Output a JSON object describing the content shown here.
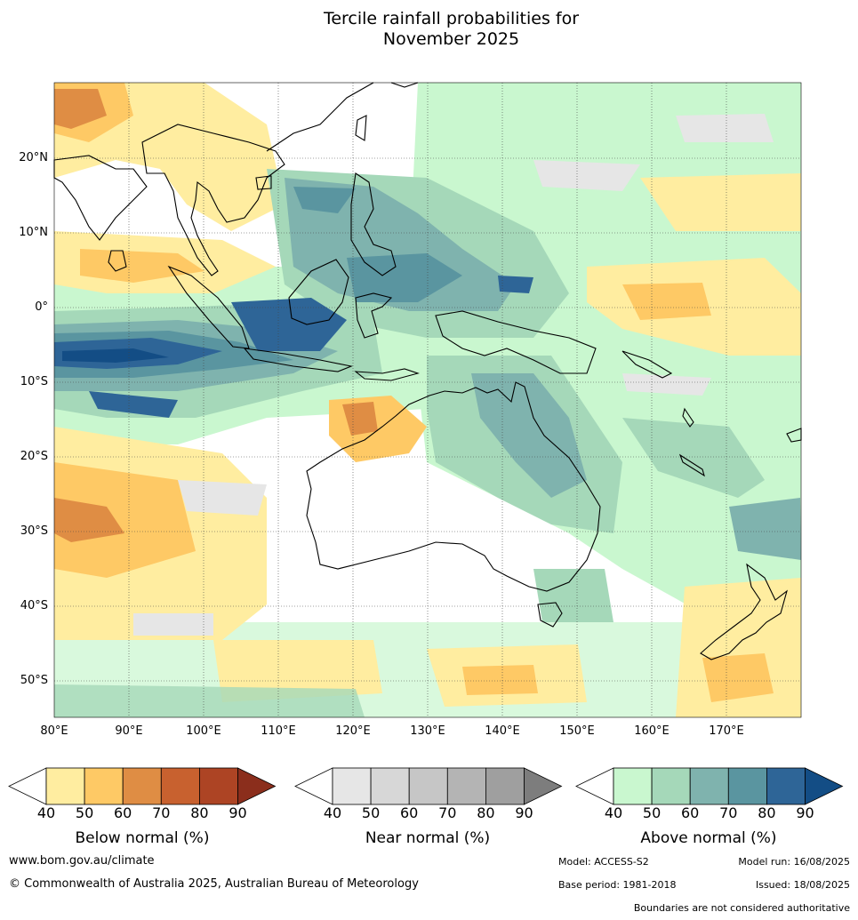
{
  "title": {
    "line1": "Tercile rainfall probabilities for",
    "line2": "November 2025"
  },
  "map": {
    "lat_labels": [
      "20°N",
      "10°N",
      "0°",
      "10°S",
      "20°S",
      "30°S",
      "40°S",
      "50°S"
    ],
    "lon_labels": [
      "80°E",
      "90°E",
      "100°E",
      "110°E",
      "120°E",
      "130°E",
      "140°E",
      "150°E",
      "160°E",
      "170°E"
    ],
    "extent": {
      "lon_min": 80,
      "lon_max": 180,
      "lat_min": -55,
      "lat_max": 30
    }
  },
  "colorbars": [
    {
      "label": "Below normal (%)",
      "ticks": [
        "40",
        "50",
        "60",
        "70",
        "80",
        "90"
      ],
      "colors": [
        "#ffffff",
        "#ffeda0",
        "#fec965",
        "#df8d44",
        "#c8612f",
        "#ad4424",
        "#8b2e1c"
      ]
    },
    {
      "label": "Near normal (%)",
      "ticks": [
        "40",
        "50",
        "60",
        "70",
        "80",
        "90"
      ],
      "colors": [
        "#ffffff",
        "#e6e6e6",
        "#d7d7d7",
        "#c6c6c6",
        "#b4b4b4",
        "#9f9f9f",
        "#7d7d7d"
      ]
    },
    {
      "label": "Above normal (%)",
      "ticks": [
        "40",
        "50",
        "60",
        "70",
        "80",
        "90"
      ],
      "colors": [
        "#ffffff",
        "#c9f7cf",
        "#a5d8b9",
        "#7fb3ae",
        "#5a95a0",
        "#2e6597",
        "#134d85"
      ]
    }
  ],
  "footer": {
    "url": "www.bom.gov.au/climate",
    "copyright": "© Commonwealth of Australia 2025, Australian Bureau of Meteorology",
    "model": "Model: ACCESS-S2",
    "model_run": "Model run: 16/08/2025",
    "base_period": "Base period: 1981-2018",
    "issued": "Issued: 18/08/2025",
    "disclaimer": "Boundaries are not considered authoritative"
  }
}
